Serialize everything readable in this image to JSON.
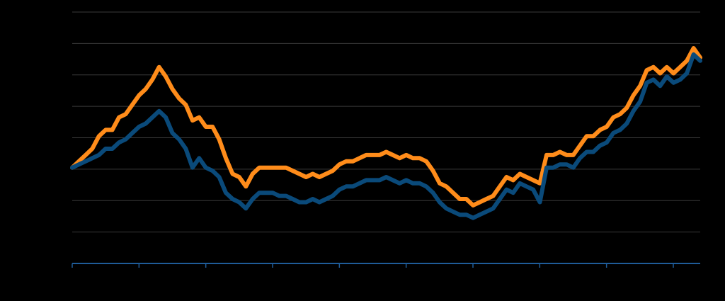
{
  "chart_data": {
    "type": "line",
    "title": "",
    "xlabel": "",
    "ylabel": "",
    "grid": true,
    "x_tick_count": 10,
    "ylim": [
      0,
      8
    ],
    "x": [
      0,
      1,
      2,
      3,
      4,
      5,
      6,
      7,
      8,
      9,
      10,
      11,
      12,
      13,
      14,
      15,
      16,
      17,
      18,
      19,
      20,
      21,
      22,
      23,
      24,
      25,
      26,
      27,
      28,
      29,
      30,
      31,
      32,
      33,
      34,
      35,
      36,
      37,
      38,
      39,
      40,
      41,
      42,
      43,
      44,
      45,
      46,
      47,
      48,
      49,
      50,
      51,
      52,
      53,
      54,
      55,
      56,
      57,
      58,
      59,
      60,
      61,
      62,
      63,
      64,
      65,
      66,
      67,
      68,
      69,
      70,
      71,
      72,
      73,
      74,
      75,
      76,
      77,
      78,
      79,
      80,
      81,
      82,
      83,
      84,
      85,
      86,
      87,
      88,
      89,
      90,
      91,
      92,
      93,
      94
    ],
    "series": [
      {
        "values": [
          3.05,
          3.25,
          3.45,
          3.65,
          4.05,
          4.25,
          4.25,
          4.65,
          4.75,
          5.05,
          5.35,
          5.55,
          5.85,
          6.25,
          5.95,
          5.55,
          5.25,
          5.05,
          4.55,
          4.65,
          4.35,
          4.35,
          3.95,
          3.35,
          2.85,
          2.75,
          2.45,
          2.85,
          3.05,
          3.05,
          3.05,
          3.05,
          3.05,
          2.95,
          2.85,
          2.75,
          2.85,
          2.75,
          2.85,
          2.95,
          3.15,
          3.25,
          3.25,
          3.35,
          3.45,
          3.45,
          3.45,
          3.55,
          3.45,
          3.35,
          3.45,
          3.35,
          3.35,
          3.25,
          2.95,
          2.55,
          2.45,
          2.25,
          2.05,
          2.05,
          1.85,
          1.95,
          2.05,
          2.15,
          2.45,
          2.75,
          2.65,
          2.85,
          2.75,
          2.65,
          2.55,
          3.45,
          3.45,
          3.55,
          3.45,
          3.45,
          3.75,
          4.05,
          4.05,
          4.25,
          4.35,
          4.65,
          4.75,
          4.95,
          5.35,
          5.65,
          6.15,
          6.25,
          6.05,
          6.25,
          6.05,
          6.25,
          6.45,
          6.85,
          6.55
        ]
      },
      {
        "values": [
          3.05,
          3.15,
          3.25,
          3.35,
          3.45,
          3.65,
          3.65,
          3.85,
          3.95,
          4.15,
          4.35,
          4.45,
          4.65,
          4.85,
          4.65,
          4.15,
          3.95,
          3.65,
          3.05,
          3.35,
          3.05,
          2.95,
          2.75,
          2.25,
          2.05,
          1.95,
          1.75,
          2.05,
          2.25,
          2.25,
          2.25,
          2.15,
          2.15,
          2.05,
          1.95,
          1.95,
          2.05,
          1.95,
          2.05,
          2.15,
          2.35,
          2.45,
          2.45,
          2.55,
          2.65,
          2.65,
          2.65,
          2.75,
          2.65,
          2.55,
          2.65,
          2.55,
          2.55,
          2.45,
          2.25,
          1.95,
          1.75,
          1.65,
          1.55,
          1.55,
          1.45,
          1.55,
          1.65,
          1.75,
          2.05,
          2.35,
          2.25,
          2.55,
          2.45,
          2.35,
          1.95,
          3.05,
          3.05,
          3.15,
          3.15,
          3.05,
          3.35,
          3.55,
          3.55,
          3.75,
          3.85,
          4.15,
          4.25,
          4.45,
          4.85,
          5.15,
          5.75,
          5.85,
          5.65,
          5.95,
          5.75,
          5.85,
          6.05,
          6.65,
          6.45
        ]
      }
    ]
  },
  "colors": {
    "background": "#000000",
    "grid": "#3a3a3a",
    "axis": "#1f5c99",
    "orange_series": "#ff8c1a",
    "blue_series": "#0a4a7a"
  }
}
